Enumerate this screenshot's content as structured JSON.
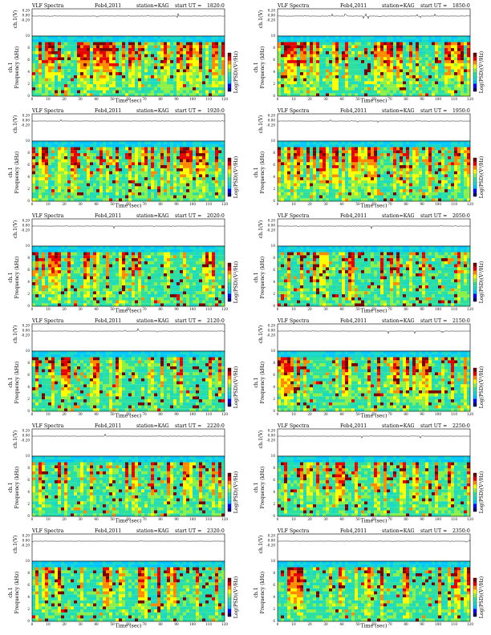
{
  "common": {
    "product": "VLF Spectra",
    "date": "Feb4,2011",
    "station": "station=KAG",
    "start_label": "start  UT  =",
    "ch_ylabel": "ch.1(V)",
    "ch_ticks": [
      "0.20",
      "0.00",
      "-0.20"
    ],
    "spec_ylabel_a": "ch.1",
    "spec_ylabel_b": "Frequency (kHz)",
    "freq_ticks": [
      "0",
      "2",
      "4",
      "6",
      "8",
      "10"
    ],
    "x_ticks": [
      "0",
      "10",
      "20",
      "30",
      "40",
      "50",
      "60",
      "70",
      "80",
      "90",
      "100",
      "110",
      "120"
    ],
    "xlabel": "Time  (sec)",
    "colorbar_label": "Log(PSD)(V²/Hz)",
    "colorbar_ticks": [
      "-",
      "-",
      "-",
      "-"
    ],
    "colors": {
      "scale": [
        "#00006e",
        "#0000ff",
        "#00c8ff",
        "#19d9c8",
        "#2ee0a0",
        "#8cf04a",
        "#ffff00",
        "#ff8c00",
        "#e60000",
        "#780000"
      ],
      "line": "#000000"
    }
  },
  "chart_data": [
    {
      "type": "heatmap",
      "start_ut": "1820:0",
      "xlim": [
        0,
        120
      ],
      "ylim": [
        0,
        10
      ],
      "ch_ylim": [
        -0.2,
        0.2
      ],
      "vlf_band_top_khz": 9.2,
      "activity": 0.85
    },
    {
      "type": "heatmap",
      "start_ut": "1850:0",
      "xlim": [
        0,
        120
      ],
      "ylim": [
        0,
        10
      ],
      "ch_ylim": [
        -0.2,
        0.2
      ],
      "vlf_band_top_khz": 9.2,
      "activity": 0.85
    },
    {
      "type": "heatmap",
      "start_ut": "1920:0",
      "xlim": [
        0,
        120
      ],
      "ylim": [
        0,
        10
      ],
      "ch_ylim": [
        -0.2,
        0.2
      ],
      "vlf_band_top_khz": 9.2,
      "activity": 0.75
    },
    {
      "type": "heatmap",
      "start_ut": "1950:0",
      "xlim": [
        0,
        120
      ],
      "ylim": [
        0,
        10
      ],
      "ch_ylim": [
        -0.2,
        0.2
      ],
      "vlf_band_top_khz": 9.2,
      "activity": 0.8
    },
    {
      "type": "heatmap",
      "start_ut": "2020:0",
      "xlim": [
        0,
        120
      ],
      "ylim": [
        0,
        10
      ],
      "ch_ylim": [
        -0.2,
        0.2
      ],
      "vlf_band_top_khz": 9.2,
      "activity": 0.55
    },
    {
      "type": "heatmap",
      "start_ut": "2050:0",
      "xlim": [
        0,
        120
      ],
      "ylim": [
        0,
        10
      ],
      "ch_ylim": [
        -0.2,
        0.2
      ],
      "vlf_band_top_khz": 9.2,
      "activity": 0.55
    },
    {
      "type": "heatmap",
      "start_ut": "2120:0",
      "xlim": [
        0,
        120
      ],
      "ylim": [
        0,
        10
      ],
      "ch_ylim": [
        -0.2,
        0.2
      ],
      "vlf_band_top_khz": 9.2,
      "activity": 0.5
    },
    {
      "type": "heatmap",
      "start_ut": "2150:0",
      "xlim": [
        0,
        120
      ],
      "ylim": [
        0,
        10
      ],
      "ch_ylim": [
        -0.2,
        0.2
      ],
      "vlf_band_top_khz": 9.2,
      "activity": 0.5
    },
    {
      "type": "heatmap",
      "start_ut": "2220:0",
      "xlim": [
        0,
        120
      ],
      "ylim": [
        0,
        10
      ],
      "ch_ylim": [
        -0.2,
        0.2
      ],
      "vlf_band_top_khz": 9.2,
      "activity": 0.4
    },
    {
      "type": "heatmap",
      "start_ut": "2250:0",
      "xlim": [
        0,
        120
      ],
      "ylim": [
        0,
        10
      ],
      "ch_ylim": [
        -0.2,
        0.2
      ],
      "vlf_band_top_khz": 9.2,
      "activity": 0.4
    },
    {
      "type": "heatmap",
      "start_ut": "2320:0",
      "xlim": [
        0,
        120
      ],
      "ylim": [
        0,
        10
      ],
      "ch_ylim": [
        -0.2,
        0.2
      ],
      "vlf_band_top_khz": 9.2,
      "activity": 0.35
    },
    {
      "type": "heatmap",
      "start_ut": "2350:0",
      "xlim": [
        0,
        120
      ],
      "ylim": [
        0,
        10
      ],
      "ch_ylim": [
        -0.2,
        0.2
      ],
      "vlf_band_top_khz": 9.2,
      "activity": 0.35
    }
  ]
}
